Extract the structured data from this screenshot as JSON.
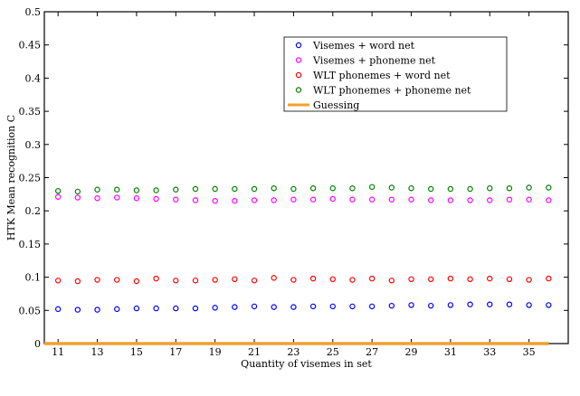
{
  "chart_data": {
    "type": "scatter",
    "title": "",
    "xlabel": "Quantity of visemes in set",
    "ylabel": "HTK Mean recognition C",
    "xlim": [
      10.3,
      37
    ],
    "ylim": [
      0,
      0.5
    ],
    "xticks": [
      11,
      13,
      15,
      17,
      19,
      21,
      23,
      25,
      27,
      29,
      31,
      33,
      35
    ],
    "xtick_labels": [
      "11",
      "13",
      "15",
      "17",
      "19",
      "21",
      "23",
      "25",
      "27",
      "29",
      "31",
      "33",
      "35"
    ],
    "yticks": [
      0,
      0.05,
      0.1,
      0.15,
      0.2,
      0.25,
      0.3,
      0.35,
      0.4,
      0.45,
      0.5
    ],
    "ytick_labels": [
      "0",
      "0.05",
      "0.1",
      "0.15",
      "0.2",
      "0.25",
      "0.3",
      "0.35",
      "0.4",
      "0.45",
      "0.5"
    ],
    "grid": false,
    "legend": "top-right",
    "x": [
      11,
      12,
      13,
      14,
      15,
      16,
      17,
      18,
      19,
      20,
      21,
      22,
      23,
      24,
      25,
      26,
      27,
      28,
      29,
      30,
      31,
      32,
      33,
      34,
      35,
      36
    ],
    "series": [
      {
        "name": "Visemes + word net",
        "color": "#0000ff",
        "marker": "circle",
        "values": [
          0.052,
          0.051,
          0.051,
          0.052,
          0.053,
          0.053,
          0.053,
          0.053,
          0.054,
          0.055,
          0.056,
          0.055,
          0.055,
          0.056,
          0.056,
          0.056,
          0.056,
          0.057,
          0.058,
          0.057,
          0.058,
          0.059,
          0.059,
          0.059,
          0.058,
          0.058
        ]
      },
      {
        "name": "Visemes + phoneme net",
        "color": "#ff00ff",
        "marker": "circle",
        "values": [
          0.221,
          0.22,
          0.219,
          0.22,
          0.219,
          0.218,
          0.217,
          0.216,
          0.215,
          0.215,
          0.216,
          0.216,
          0.217,
          0.217,
          0.218,
          0.217,
          0.217,
          0.217,
          0.217,
          0.216,
          0.216,
          0.216,
          0.216,
          0.217,
          0.217,
          0.216
        ]
      },
      {
        "name": "WLT phonemes + word net",
        "color": "#ff0000",
        "marker": "circle",
        "values": [
          0.095,
          0.094,
          0.096,
          0.096,
          0.094,
          0.098,
          0.095,
          0.095,
          0.096,
          0.097,
          0.095,
          0.099,
          0.096,
          0.098,
          0.097,
          0.096,
          0.098,
          0.095,
          0.097,
          0.097,
          0.098,
          0.097,
          0.098,
          0.097,
          0.096,
          0.098
        ]
      },
      {
        "name": "WLT phonemes + phoneme net",
        "color": "#008000",
        "marker": "circle",
        "values": [
          0.23,
          0.229,
          0.232,
          0.232,
          0.231,
          0.231,
          0.232,
          0.233,
          0.233,
          0.233,
          0.233,
          0.234,
          0.233,
          0.234,
          0.234,
          0.234,
          0.236,
          0.235,
          0.234,
          0.233,
          0.233,
          0.233,
          0.234,
          0.234,
          0.235,
          0.235
        ]
      },
      {
        "name": "Guessing",
        "color": "#f0a030",
        "marker": "line",
        "values": [
          0,
          0,
          0,
          0,
          0,
          0,
          0,
          0,
          0,
          0,
          0,
          0,
          0,
          0,
          0,
          0,
          0,
          0,
          0,
          0,
          0,
          0,
          0,
          0,
          0,
          0
        ]
      }
    ]
  }
}
